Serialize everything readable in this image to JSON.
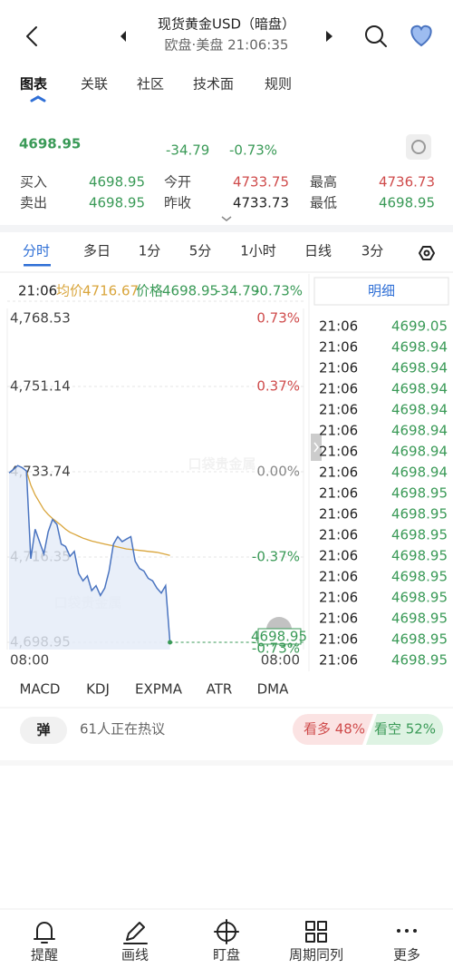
{
  "header": {
    "title": "现货黄金USD（暗盘）",
    "subtitle": "欧盘·美盘  21:06:35"
  },
  "tabs": [
    "图表",
    "关联",
    "社区",
    "技术面",
    "规则"
  ],
  "quote": {
    "price": "4698.95",
    "change": "-34.79",
    "change_pct": "-0.73%",
    "fields": [
      {
        "label": "买入",
        "value": "4698.95",
        "color": "#3a9a57"
      },
      {
        "label": "今开",
        "value": "4733.75",
        "color": "#cf4b4b"
      },
      {
        "label": "最高",
        "value": "4736.73",
        "color": "#cf4b4b"
      },
      {
        "label": "卖出",
        "value": "4698.95",
        "color": "#3a9a57"
      },
      {
        "label": "昨收",
        "value": "4733.73",
        "color": "#222222"
      },
      {
        "label": "最低",
        "value": "4698.95",
        "color": "#3a9a57"
      }
    ]
  },
  "periods": [
    "分时",
    "多日",
    "1分",
    "5分",
    "1小时",
    "日线",
    "3分"
  ],
  "chart_info": {
    "time": "21:06",
    "avg_label": "均价",
    "avg": "4716.67",
    "price_label": "价格",
    "price": "4698.95",
    "change": "-34.79",
    "change_pct": "-0.73%"
  },
  "chart": {
    "type": "line",
    "ylim": [
      4698.95,
      4768.53
    ],
    "yticks": [
      {
        "value": 4768.53,
        "label": "4,768.53"
      },
      {
        "value": 4751.14,
        "label": "4,751.14"
      },
      {
        "value": 4733.74,
        "label": "4,733.74"
      },
      {
        "value": 4716.35,
        "label": "4,716.35"
      },
      {
        "value": 4698.95,
        "label": "4,698.95"
      }
    ],
    "y2ticks": [
      {
        "value": 0.73,
        "label": "0.73%",
        "color": "#cf4b4b"
      },
      {
        "value": 0.37,
        "label": "0.37%",
        "color": "#cf4b4b"
      },
      {
        "value": 0,
        "label": "0.00%",
        "color": "#888888"
      },
      {
        "value": -0.37,
        "label": "-0.37%",
        "color": "#3a9a57"
      },
      {
        "value": -0.73,
        "label": "-0.73%",
        "color": "#3a9a57"
      }
    ],
    "xticks": [
      "08:00",
      "08:00"
    ],
    "grid": true,
    "series": [
      {
        "color": "#4a74c0",
        "values": [
          4733.5,
          4734.2,
          4735.0,
          4734.6,
          4733.9,
          4716.0,
          4722.0,
          4719.5,
          4717.0,
          4721.5,
          4724.0,
          4723.0,
          4719.0,
          4718.5,
          4716.5,
          4717.5,
          4713.0,
          4711.5,
          4712.5,
          4709.5,
          4710.5,
          4708.5,
          4710.0,
          4713.5,
          4719.0,
          4720.5,
          4719.5,
          4720.0,
          4720.5,
          4715.5,
          4714.0,
          4713.5,
          4712.0,
          4711.5,
          4710.0,
          4709.0,
          4710.5,
          4698.95
        ]
      },
      {
        "color": "#d9a53b",
        "values": [
          null,
          null,
          null,
          null,
          4733.9,
          4731,
          4729,
          4727.5,
          4726,
          4725,
          4724.2,
          4723.5,
          4722.8,
          4722,
          4721.4,
          4721,
          4720.6,
          4720.2,
          4719.9,
          4719.6,
          4719.4,
          4719.2,
          4719,
          4718.8,
          4718.6,
          4718.4,
          4718.2,
          4718.0,
          4717.9,
          4717.8,
          4717.7,
          4717.6,
          4717.5,
          4717.4,
          4717.3,
          4717.1,
          4716.9,
          4716.67
        ]
      }
    ],
    "watermark": "口袋贵金属",
    "price_tag": [
      "4698.95",
      "-0.73%"
    ]
  },
  "detail": {
    "title": "明细",
    "rows": [
      [
        "21:06",
        "4699.05"
      ],
      [
        "21:06",
        "4698.94"
      ],
      [
        "21:06",
        "4698.94"
      ],
      [
        "21:06",
        "4698.94"
      ],
      [
        "21:06",
        "4698.94"
      ],
      [
        "21:06",
        "4698.94"
      ],
      [
        "21:06",
        "4698.94"
      ],
      [
        "21:06",
        "4698.94"
      ],
      [
        "21:06",
        "4698.95"
      ],
      [
        "21:06",
        "4698.95"
      ],
      [
        "21:06",
        "4698.95"
      ],
      [
        "21:06",
        "4698.95"
      ],
      [
        "21:06",
        "4698.95"
      ],
      [
        "21:06",
        "4698.95"
      ],
      [
        "21:06",
        "4698.95"
      ],
      [
        "21:06",
        "4698.95"
      ],
      [
        "21:06",
        "4698.95"
      ]
    ]
  },
  "indicators": [
    "MACD",
    "KDJ",
    "EXPMA",
    "ATR",
    "DMA"
  ],
  "discussion": {
    "icon": "弹",
    "text": "61人正在热议",
    "bull": "看多 48%",
    "bear": "看空 52%"
  },
  "nav": [
    "提醒",
    "画线",
    "盯盘",
    "周期同列",
    "更多"
  ]
}
